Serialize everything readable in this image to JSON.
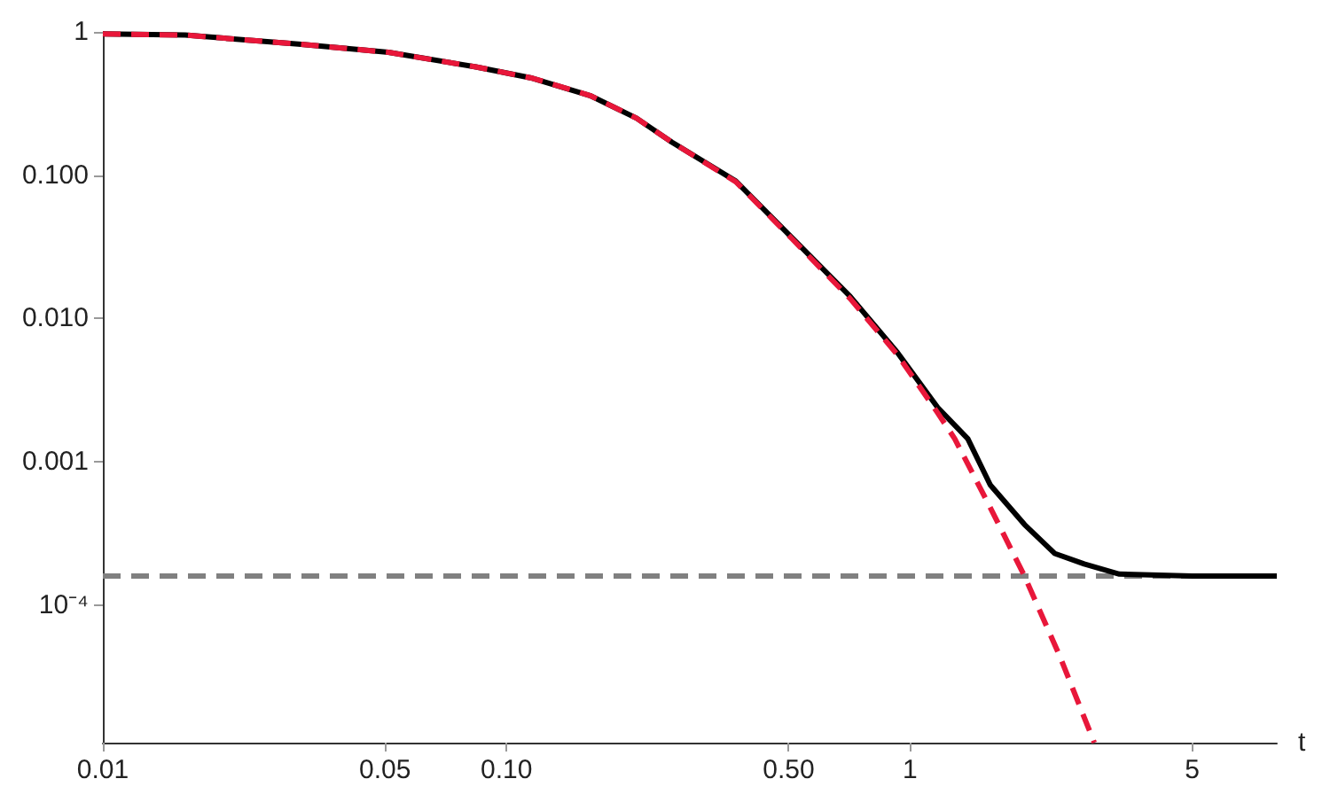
{
  "chart_data": {
    "type": "line",
    "xlabel": "t",
    "log": "xy",
    "grid": false,
    "marker": "none",
    "xlim": [
      0.01,
      8.1
    ],
    "ylim": [
      1.1e-05,
      1
    ],
    "xticks": [
      0.01,
      0.05,
      {
        "value": 0.1,
        "label": "0.10"
      },
      {
        "value": 0.5,
        "label": "0.50"
      },
      1,
      5
    ],
    "yticks": [
      {
        "value": 0.0001,
        "label": "10⁻⁴"
      },
      0.001,
      {
        "value": 0.01,
        "label": "0.010"
      },
      {
        "value": 0.1,
        "label": "0.100"
      },
      1
    ],
    "series": [
      {
        "color": "#000000",
        "line_style": "solid",
        "x": [
          0.01,
          0.016,
          0.031,
          0.051,
          0.084,
          0.116,
          0.161,
          0.21,
          0.257,
          0.37,
          0.51,
          0.71,
          0.93,
          1.17,
          1.39,
          1.58,
          1.92,
          2.28,
          2.7,
          3.3,
          5,
          8.1
        ],
        "values": [
          0.97,
          0.95,
          0.82,
          0.72,
          0.57,
          0.475,
          0.36,
          0.25,
          0.17,
          0.091,
          0.0366,
          0.0143,
          0.0058,
          0.0024,
          0.00145,
          0.00069,
          0.000366,
          0.00023,
          0.000194,
          0.000165,
          0.00016,
          0.00016
        ]
      },
      {
        "color": "#e8173a",
        "line_style": "dashed",
        "x": [
          0.01,
          0.016,
          0.031,
          0.051,
          0.084,
          0.116,
          0.161,
          0.21,
          0.257,
          0.37,
          0.51,
          0.71,
          0.93,
          1.17,
          1.29,
          1.58,
          1.92,
          2.35,
          2.86
        ],
        "values": [
          0.97,
          0.95,
          0.82,
          0.72,
          0.57,
          0.475,
          0.36,
          0.25,
          0.17,
          0.09,
          0.036,
          0.0138,
          0.0056,
          0.0022,
          0.00145,
          0.00048,
          0.00016,
          4.4e-05,
          1.1e-05
        ]
      }
    ],
    "ref_lines": [
      {
        "axis": "y",
        "value": 0.00016,
        "color": "#808080",
        "line_style": "dashed"
      }
    ]
  }
}
